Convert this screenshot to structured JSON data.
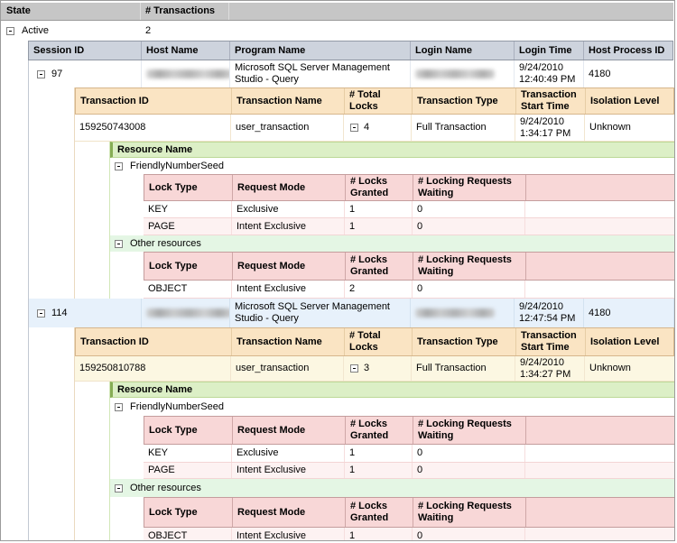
{
  "report": {
    "columns": {
      "state": "State",
      "num_transactions": "# Transactions",
      "session": [
        "Session ID",
        "Host Name",
        "Program Name",
        "Login Name",
        "Login Time",
        "Host Process ID"
      ],
      "transaction": [
        "Transaction ID",
        "Transaction Name",
        "# Total Locks",
        "Transaction Type",
        "Transaction Start Time",
        "Isolation Level"
      ],
      "resource": "Resource Name",
      "lock": [
        "Lock Type",
        "Request Mode",
        "# Locks Granted",
        "# Locking Requests Waiting"
      ]
    },
    "state_group": {
      "state": "Active",
      "num_transactions": "2"
    },
    "sessions": [
      {
        "id": "97",
        "program_name": "Microsoft SQL Server Management Studio - Query",
        "login_time": "9/24/2010 12:40:49 PM",
        "host_process_id": "4180",
        "transaction": {
          "id": "159250743008",
          "name": "user_transaction",
          "total_locks": "4",
          "type": "Full Transaction",
          "start_time": "9/24/2010 1:34:17 PM",
          "isolation": "Unknown"
        },
        "resources": [
          {
            "name": "FriendlyNumberSeed",
            "locks": [
              {
                "type": "KEY",
                "mode": "Exclusive",
                "granted": "1",
                "waiting": "0"
              },
              {
                "type": "PAGE",
                "mode": "Intent Exclusive",
                "granted": "1",
                "waiting": "0"
              }
            ]
          },
          {
            "name": "Other resources",
            "locks": [
              {
                "type": "OBJECT",
                "mode": "Intent Exclusive",
                "granted": "2",
                "waiting": "0"
              }
            ]
          }
        ]
      },
      {
        "id": "114",
        "program_name": "Microsoft SQL Server Management Studio - Query",
        "login_time": "9/24/2010 12:47:54 PM",
        "host_process_id": "4180",
        "transaction": {
          "id": "159250810788",
          "name": "user_transaction",
          "total_locks": "3",
          "type": "Full Transaction",
          "start_time": "9/24/2010 1:34:27 PM",
          "isolation": "Unknown"
        },
        "resources": [
          {
            "name": "FriendlyNumberSeed",
            "locks": [
              {
                "type": "KEY",
                "mode": "Exclusive",
                "granted": "1",
                "waiting": "0"
              },
              {
                "type": "PAGE",
                "mode": "Intent Exclusive",
                "granted": "1",
                "waiting": "0"
              }
            ]
          },
          {
            "name": "Other resources",
            "locks": [
              {
                "type": "OBJECT",
                "mode": "Intent Exclusive",
                "granted": "1",
                "waiting": "0"
              }
            ]
          }
        ]
      }
    ],
    "colors": {
      "header_gray": "#c6c6c6",
      "session_header": "#cdd3dd",
      "session_row_alt": "#e7f1fb",
      "txn_header": "#fae4c3",
      "txn_row_alt": "#fcf7e2",
      "resource_header": "#dcefc6",
      "resource_row_alt": "#e4f6e4",
      "lock_header": "#f8d7d7",
      "lock_row_alt": "#fdf2f2"
    }
  }
}
